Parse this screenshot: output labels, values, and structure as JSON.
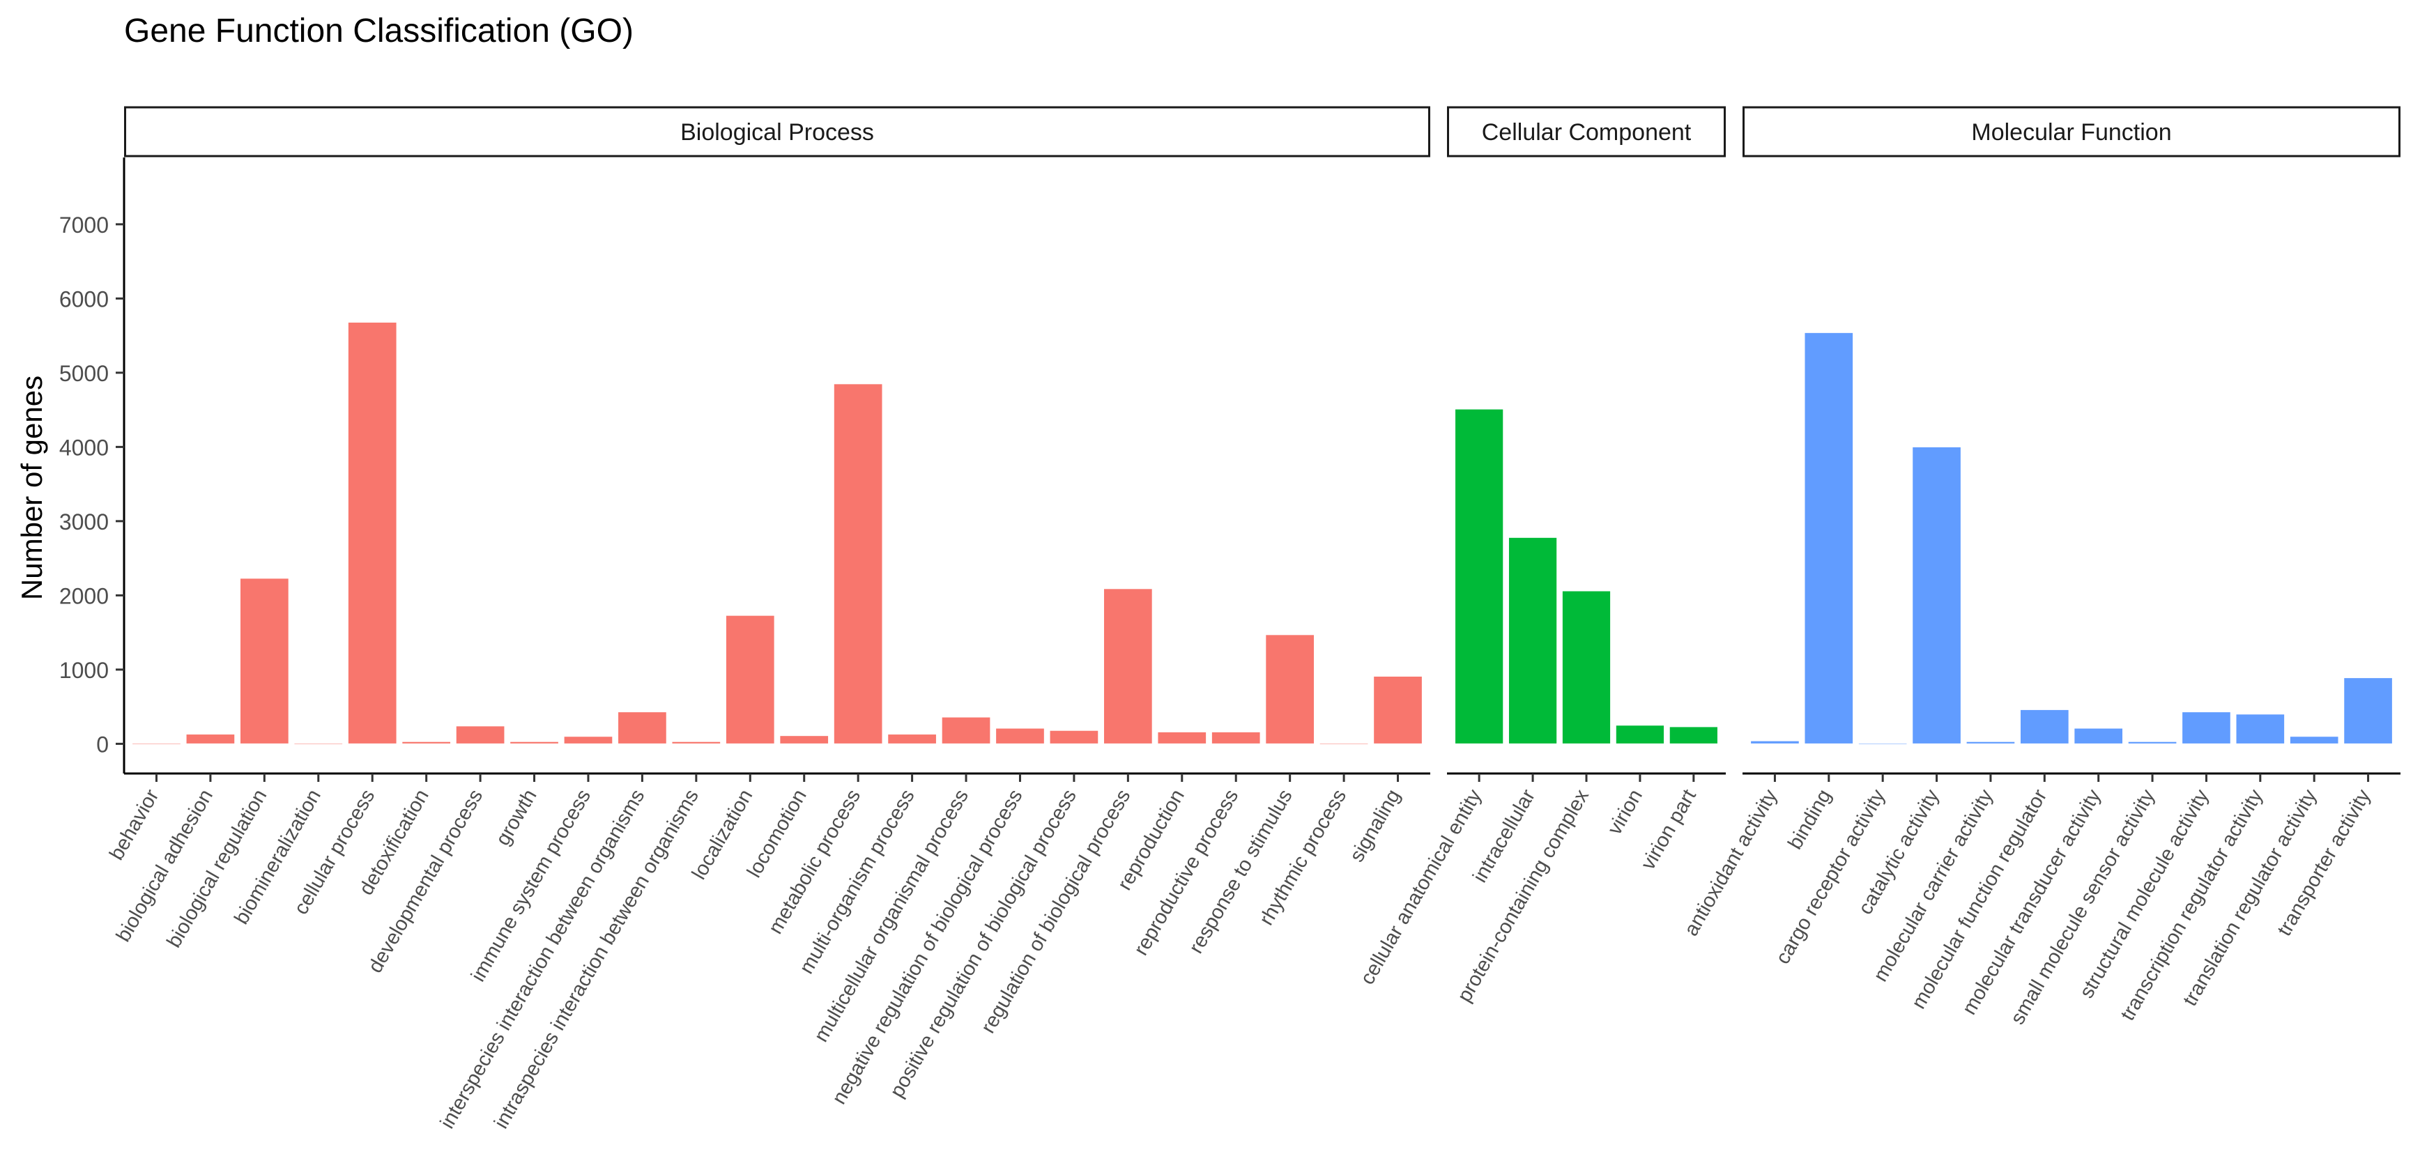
{
  "chart_data": {
    "type": "bar",
    "title": "Gene Function Classification (GO)",
    "xlabel": "",
    "ylabel": "Number of genes",
    "ylim": [
      -400,
      7900
    ],
    "yticks": [
      0,
      1000,
      2000,
      3000,
      4000,
      5000,
      6000,
      7000
    ],
    "ytick_labels": [
      "0",
      "1000",
      "2000",
      "3000",
      "4000",
      "5000",
      "6000",
      "7000"
    ],
    "grid": false,
    "legend": "none",
    "panels": [
      {
        "name": "Biological Process",
        "color": "#F8766D",
        "categories": [
          "behavior",
          "biological adhesion",
          "biological regulation",
          "biomineralization",
          "cellular process",
          "detoxification",
          "developmental process",
          "growth",
          "immune system process",
          "interspecies interaction between organisms",
          "intraspecies interaction between organisms",
          "localization",
          "locomotion",
          "metabolic process",
          "multi-organism process",
          "multicellular organismal process",
          "negative regulation of biological process",
          "positive regulation of biological process",
          "regulation of biological process",
          "reproduction",
          "reproductive process",
          "response to stimulus",
          "rhythmic process",
          "signaling"
        ],
        "values": [
          8,
          130,
          2230,
          8,
          5680,
          30,
          240,
          30,
          100,
          430,
          30,
          1730,
          110,
          4850,
          130,
          360,
          210,
          180,
          2090,
          160,
          160,
          1470,
          8,
          910
        ]
      },
      {
        "name": "Cellular Component",
        "color": "#00BA38",
        "categories": [
          "cellular anatomical entity",
          "intracellular",
          "protein-containing complex",
          "virion",
          "virion part"
        ],
        "values": [
          4510,
          2780,
          2060,
          250,
          230
        ]
      },
      {
        "name": "Molecular Function",
        "color": "#619CFF",
        "categories": [
          "antioxidant activity",
          "binding",
          "cargo receptor activity",
          "catalytic activity",
          "molecular carrier activity",
          "molecular function regulator",
          "molecular transducer activity",
          "small molecule sensor activity",
          "structural molecule activity",
          "transcription regulator activity",
          "translation regulator activity",
          "transporter activity"
        ],
        "values": [
          40,
          5540,
          8,
          4000,
          30,
          460,
          210,
          30,
          430,
          400,
          100,
          890
        ]
      }
    ]
  }
}
